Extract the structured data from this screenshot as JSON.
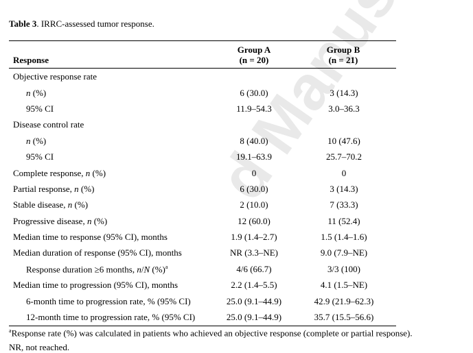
{
  "watermark": "d Manuscript",
  "caption": {
    "label": "Table 3",
    "text": ". IRRC-assessed tumor response."
  },
  "header": {
    "response": "Response",
    "group_a": {
      "name": "Group A",
      "n": "(n = 20)"
    },
    "group_b": {
      "name": "Group B",
      "n": "(n = 21)"
    }
  },
  "rows": [
    {
      "label": "Objective response rate",
      "a": "",
      "b": ""
    },
    {
      "label": "n (%)",
      "a": "6 (30.0)",
      "b": "3 (14.3)"
    },
    {
      "label": "95% CI",
      "a": "11.9–54.3",
      "b": "3.0–36.3"
    },
    {
      "label": "Disease control rate",
      "a": "",
      "b": ""
    },
    {
      "label": "n (%)",
      "a": "8 (40.0)",
      "b": "10 (47.6)"
    },
    {
      "label": "95% CI",
      "a": "19.1–63.9",
      "b": "25.7–70.2"
    },
    {
      "label": "Complete response, n (%)",
      "a": "0",
      "b": "0"
    },
    {
      "label": "Partial response, n (%)",
      "a": "6 (30.0)",
      "b": "3 (14.3)"
    },
    {
      "label": "Stable disease, n (%)",
      "a": "2 (10.0)",
      "b": "7 (33.3)"
    },
    {
      "label": "Progressive disease, n (%)",
      "a": "12 (60.0)",
      "b": "11 (52.4)"
    },
    {
      "label": "Median time to response (95% CI), months",
      "a": "1.9 (1.4–2.7)",
      "b": "1.5 (1.4–1.6)"
    },
    {
      "label": "Median duration of response (95% CI), months",
      "a": "NR (3.3–NE)",
      "b": "9.0 (7.9–NE)"
    },
    {
      "label": "Response duration ≥6 months, n/N (%)",
      "sup": "a",
      "a": "4/6 (66.7)",
      "b": "3/3 (100)"
    },
    {
      "label": "Median time to progression (95% CI), months",
      "a": "2.2 (1.4–5.5)",
      "b": "4.1 (1.5–NE)"
    },
    {
      "label": "6-month time to progression rate, % (95% CI)",
      "a": "25.0 (9.1–44.9)",
      "b": "42.9 (21.9–62.3)"
    },
    {
      "label": "12-month time to progression rate, % (95% CI)",
      "a": "25.0 (9.1–44.9)",
      "b": "35.7 (15.5–56.6)"
    }
  ],
  "footnotes": {
    "note1_sup": "a",
    "note1": "Response rate (%) was calculated in patients who achieved an objective response (complete or partial response).",
    "note2": "NR, not reached."
  }
}
